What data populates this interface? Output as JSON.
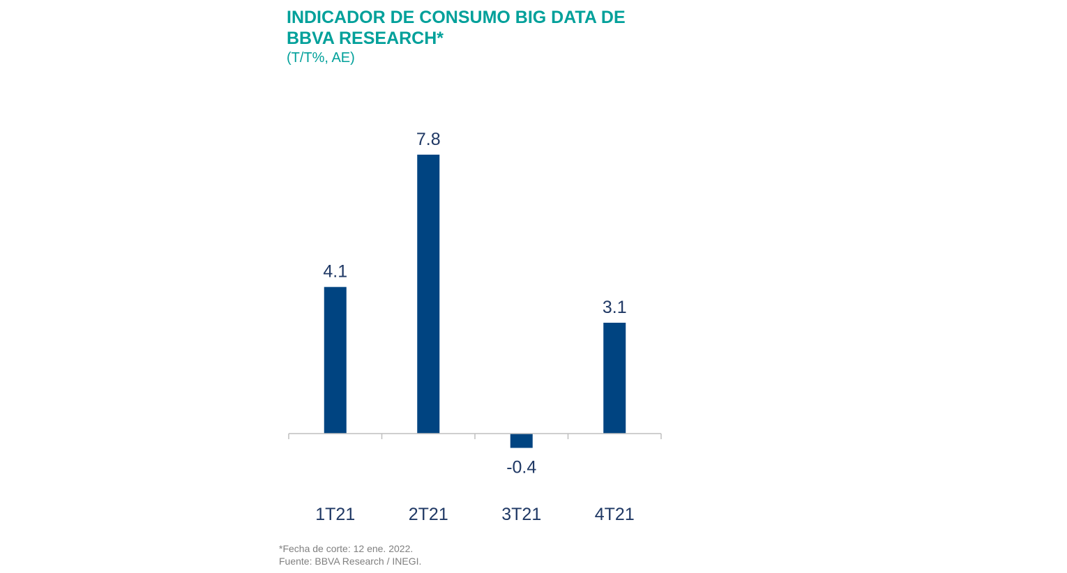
{
  "header": {
    "title": "INDICADOR DE CONSUMO BIG DATA DE BBVA RESEARCH*",
    "subtitle": "(T/T%, AE)"
  },
  "colors": {
    "title": "#00A09A",
    "bar": "#004481",
    "label": "#1F3864",
    "axis": "#BFBFBF",
    "footnote": "#7F7F7F"
  },
  "chart_data": {
    "type": "bar",
    "categories": [
      "1T21",
      "2T21",
      "3T21",
      "4T21"
    ],
    "values": [
      4.1,
      7.8,
      -0.4,
      3.1
    ],
    "data_labels": [
      "4.1",
      "7.8",
      "-0.4",
      "3.1"
    ],
    "title": "INDICADOR DE CONSUMO BIG DATA DE BBVA RESEARCH*",
    "subtitle": "(T/T%, AE)",
    "xlabel": "",
    "ylabel": "",
    "ylim": [
      -0.4,
      7.8
    ],
    "grid": false,
    "legend": "none"
  },
  "footnotes": {
    "note": "*Fecha de corte: 12 ene. 2022.",
    "source": "Fuente: BBVA Research / INEGI."
  }
}
